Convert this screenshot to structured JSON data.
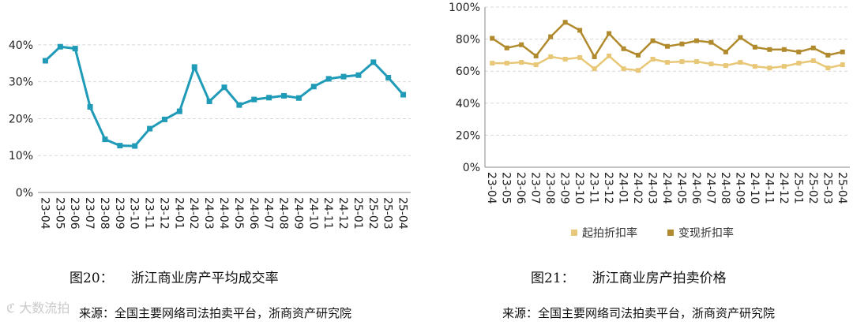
{
  "chart_data": [
    {
      "type": "line",
      "title": "",
      "xlabel": "",
      "ylabel": "",
      "ylim": [
        0,
        45
      ],
      "yticks": [
        "0%",
        "10%",
        "20%",
        "30%",
        "40%"
      ],
      "grid": true,
      "categories": [
        "23-04",
        "23-05",
        "23-06",
        "23-07",
        "23-08",
        "23-09",
        "23-10",
        "23-11",
        "23-12",
        "24-01",
        "24-02",
        "24-03",
        "24-04",
        "24-05",
        "24-06",
        "24-07",
        "24-08",
        "24-09",
        "24-10",
        "24-11",
        "24-12",
        "25-01",
        "25-02",
        "25-03",
        "25-04"
      ],
      "series": [
        {
          "color": "#1f9bb8",
          "values": [
            35.7,
            39.5,
            39.0,
            23.2,
            14.4,
            12.7,
            12.6,
            17.3,
            19.8,
            22.0,
            34.0,
            24.7,
            28.5,
            23.7,
            25.2,
            25.7,
            26.2,
            25.6,
            28.7,
            30.8,
            31.4,
            31.8,
            35.3,
            31.1,
            26.5
          ]
        }
      ]
    },
    {
      "type": "line",
      "title": "",
      "xlabel": "",
      "ylabel": "",
      "ylim": [
        0,
        100
      ],
      "yticks": [
        "0%",
        "20%",
        "40%",
        "60%",
        "80%",
        "100%"
      ],
      "grid": true,
      "legend": "bottom",
      "categories": [
        "23-04",
        "23-05",
        "23-06",
        "23-07",
        "23-08",
        "23-09",
        "23-10",
        "23-11",
        "23-12",
        "24-01",
        "24-02",
        "24-03",
        "24-04",
        "24-05",
        "24-06",
        "24-07",
        "24-08",
        "24-09",
        "24-10",
        "24-11",
        "24-12",
        "25-01",
        "25-02",
        "25-03",
        "25-04"
      ],
      "series": [
        {
          "name": "起拍折扣率",
          "color": "#e8c878",
          "values": [
            65,
            65,
            65.5,
            64,
            69,
            67.5,
            68.5,
            61.5,
            69.5,
            61.5,
            60.5,
            67.5,
            65.5,
            66,
            66,
            64.5,
            63.5,
            65.5,
            63,
            62,
            63,
            65,
            66.5,
            62,
            64
          ]
        },
        {
          "name": "变现折扣率",
          "color": "#b08a2c",
          "values": [
            80.5,
            74.5,
            76.5,
            69.5,
            81.5,
            90.5,
            85.5,
            69,
            83.5,
            74,
            70,
            79,
            75.5,
            77,
            79,
            78,
            72,
            81,
            75,
            73.5,
            73.5,
            72,
            74.5,
            70,
            72
          ]
        }
      ]
    }
  ],
  "captions": {
    "left_num": "图20：",
    "left_text": "浙江商业房产平均成交率",
    "right_num": "图21：",
    "right_text": "浙江商业房产拍卖价格"
  },
  "sources": {
    "left": "来源：全国主要网络司法拍卖平台，浙商资产研究院",
    "right": "来源：全国主要网络司法拍卖平台，浙商资产研究院"
  },
  "watermark": "大数流拍"
}
